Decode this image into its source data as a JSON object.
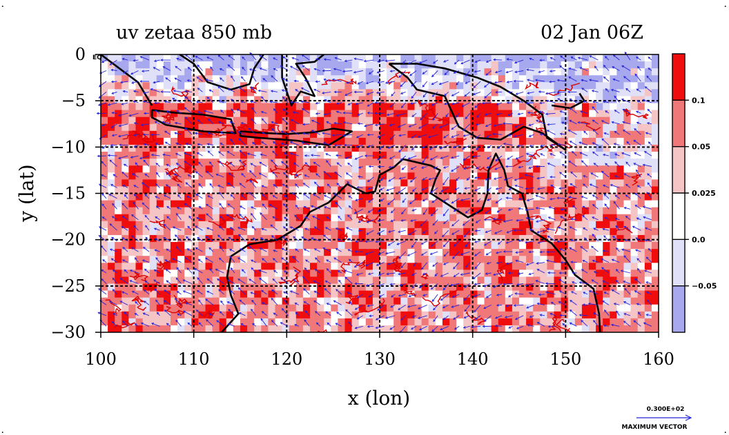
{
  "chart_data": {
    "type": "heatmap",
    "title_left": "uv zetaa 850 mb",
    "title_right": "02 Jan 06Z",
    "xlabel": "x (lon)",
    "ylabel": "y (lat)",
    "xlim": [
      100,
      160
    ],
    "ylim": [
      -30,
      0
    ],
    "x_ticks": [
      100,
      110,
      120,
      130,
      140,
      150,
      160
    ],
    "y_ticks": [
      0,
      -5,
      -10,
      -15,
      -20,
      -25,
      -30
    ],
    "x_tick_labels": [
      "100",
      "110",
      "120",
      "130",
      "140",
      "150",
      "160"
    ],
    "y_tick_labels": [
      "0",
      "−5",
      "−10",
      "−15",
      "−20",
      "−25",
      "−30"
    ],
    "eq_label": "EQ",
    "grid_x": [
      110,
      120,
      130,
      140,
      150
    ],
    "grid_y": [
      -5,
      -10,
      -15,
      -20,
      -25
    ],
    "colorbar": {
      "levels": [
        "0.1",
        "0.05",
        "0.025",
        "0.0",
        "−0.05"
      ],
      "colors": [
        "#f00d0d",
        "#f07878",
        "#f5c4c4",
        "#ffffff",
        "#e0e1f8",
        "#a7a8ee"
      ]
    },
    "vector_scale": {
      "value": "0.300E+02",
      "label": "MAXIMUM VECTOR"
    }
  },
  "colors": {
    "strong_pos": "#f00d0d",
    "mid_pos": "#f07878",
    "weak_pos": "#f5c4c4",
    "weak_neg": "#e0e1f8",
    "strong_neg": "#a7a8ee",
    "vector": "#2222dd",
    "contour": "#dd0000",
    "coast": "#000000"
  }
}
